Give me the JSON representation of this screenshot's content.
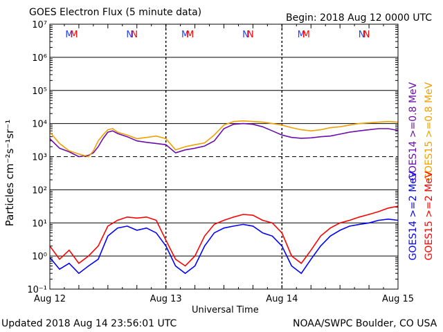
{
  "header": {
    "title": "GOES Electron Flux (5 minute data)",
    "begin": "Begin: 2018 Aug 12 0000 UTC"
  },
  "footer": {
    "updated": "Updated 2018 Aug 14 23:56:01 UTC",
    "credit": "NOAA/SWPC Boulder, CO USA"
  },
  "colors": {
    "goes14_08": "#6a0dad",
    "goes15_08": "#f0a000",
    "goes14_2": "#0000ff",
    "goes15_2": "#ff0000",
    "m_marker": "#1e40ff",
    "n_marker": "#ff0000"
  },
  "chart_data": {
    "type": "line",
    "xlabel": "Universal Time",
    "ylabel": "Particles cm⁻²s⁻¹sr⁻¹",
    "x_ticks": [
      "Aug 12",
      "Aug 13",
      "Aug 14",
      "Aug 15"
    ],
    "x_unit": "hours since 2018 Aug 12 00:00 UTC",
    "xlim": [
      0,
      72
    ],
    "y_scale": "log",
    "ylim": [
      0.1,
      10000000
    ],
    "y_ticks": [
      "10⁻¹",
      "10⁰",
      "10¹",
      "10²",
      "10³",
      "10⁴",
      "10⁵",
      "10⁶",
      "10⁷"
    ],
    "threshold_line": 1000,
    "legend": [
      "GOES14 >=0.8 MeV",
      "GOES15 >=0.8 MeV",
      "GOES14 >=2 MeV",
      "GOES15 >=2 MeV"
    ],
    "legend_placement": "right, vertical",
    "markers": [
      {
        "label": "M",
        "color": "blue",
        "hour": 4.0
      },
      {
        "label": "M",
        "color": "red",
        "hour": 5.0
      },
      {
        "label": "N",
        "color": "blue",
        "hour": 16.5
      },
      {
        "label": "N",
        "color": "red",
        "hour": 17.5
      },
      {
        "label": "M",
        "color": "blue",
        "hour": 28.0
      },
      {
        "label": "M",
        "color": "red",
        "hour": 29.0
      },
      {
        "label": "N",
        "color": "blue",
        "hour": 40.5
      },
      {
        "label": "N",
        "color": "red",
        "hour": 41.5
      },
      {
        "label": "M",
        "color": "blue",
        "hour": 52.0
      },
      {
        "label": "M",
        "color": "red",
        "hour": 53.0
      },
      {
        "label": "N",
        "color": "blue",
        "hour": 64.5
      },
      {
        "label": "N",
        "color": "red",
        "hour": 65.5
      }
    ],
    "series": [
      {
        "name": "GOES14 >=0.8 MeV",
        "x": [
          0,
          2,
          4,
          6,
          8,
          9,
          10,
          11,
          12,
          13,
          14,
          16,
          18,
          20,
          22,
          24,
          26,
          28,
          30,
          32,
          34,
          36,
          38,
          40,
          42,
          44,
          46,
          48,
          50,
          52,
          54,
          56,
          58,
          60,
          62,
          64,
          66,
          68,
          70,
          72
        ],
        "y": [
          3500,
          1800,
          1400,
          1000,
          1100,
          1300,
          2000,
          3500,
          5500,
          6000,
          5000,
          4000,
          3000,
          2700,
          2500,
          2300,
          1300,
          1600,
          1800,
          2100,
          3000,
          7000,
          9500,
          10000,
          9500,
          8000,
          6000,
          4500,
          3800,
          3600,
          3700,
          4000,
          4200,
          4800,
          5500,
          6000,
          6500,
          7000,
          7000,
          6200
        ]
      },
      {
        "name": "GOES15 >=0.8 MeV",
        "x": [
          0,
          2,
          4,
          6,
          8,
          9,
          10,
          11,
          12,
          13,
          14,
          16,
          18,
          20,
          22,
          24,
          26,
          28,
          30,
          32,
          34,
          36,
          38,
          40,
          42,
          44,
          46,
          48,
          50,
          52,
          54,
          56,
          58,
          60,
          62,
          64,
          66,
          68,
          70,
          72
        ],
        "y": [
          5500,
          2500,
          1500,
          1200,
          1000,
          1500,
          3000,
          4500,
          6500,
          7000,
          5500,
          4500,
          3500,
          3800,
          4200,
          3500,
          1600,
          2000,
          2300,
          2600,
          4500,
          9000,
          11500,
          12000,
          11500,
          11000,
          10000,
          9000,
          7500,
          6500,
          6000,
          6500,
          7500,
          8000,
          9000,
          10000,
          10500,
          11000,
          11500,
          11000
        ]
      },
      {
        "name": "GOES14 >=2 MeV",
        "x": [
          0,
          2,
          4,
          6,
          8,
          10,
          12,
          14,
          16,
          18,
          20,
          22,
          24,
          26,
          28,
          30,
          32,
          34,
          36,
          38,
          40,
          42,
          44,
          46,
          48,
          50,
          52,
          54,
          56,
          58,
          60,
          62,
          64,
          66,
          68,
          70,
          72
        ],
        "y": [
          0.9,
          0.4,
          0.6,
          0.3,
          0.5,
          0.8,
          4,
          7,
          8,
          6,
          7,
          5,
          2,
          0.5,
          0.3,
          0.5,
          2,
          5,
          7,
          8,
          9,
          8,
          5,
          4,
          2,
          0.5,
          0.3,
          0.8,
          2,
          4,
          6,
          8,
          9,
          10,
          12,
          13,
          12
        ]
      },
      {
        "name": "GOES15 >=2 MeV",
        "x": [
          0,
          2,
          4,
          6,
          8,
          10,
          12,
          14,
          16,
          18,
          20,
          22,
          24,
          26,
          28,
          30,
          32,
          34,
          36,
          38,
          40,
          42,
          44,
          46,
          48,
          50,
          52,
          54,
          56,
          58,
          60,
          62,
          64,
          66,
          68,
          70,
          72
        ],
        "y": [
          2,
          0.8,
          1.5,
          0.6,
          1,
          2,
          8,
          12,
          15,
          14,
          15,
          12,
          3,
          0.8,
          0.5,
          1,
          4,
          9,
          12,
          15,
          18,
          17,
          12,
          10,
          5,
          1,
          0.6,
          1.5,
          4,
          7,
          10,
          12,
          15,
          18,
          22,
          28,
          32
        ]
      }
    ]
  }
}
